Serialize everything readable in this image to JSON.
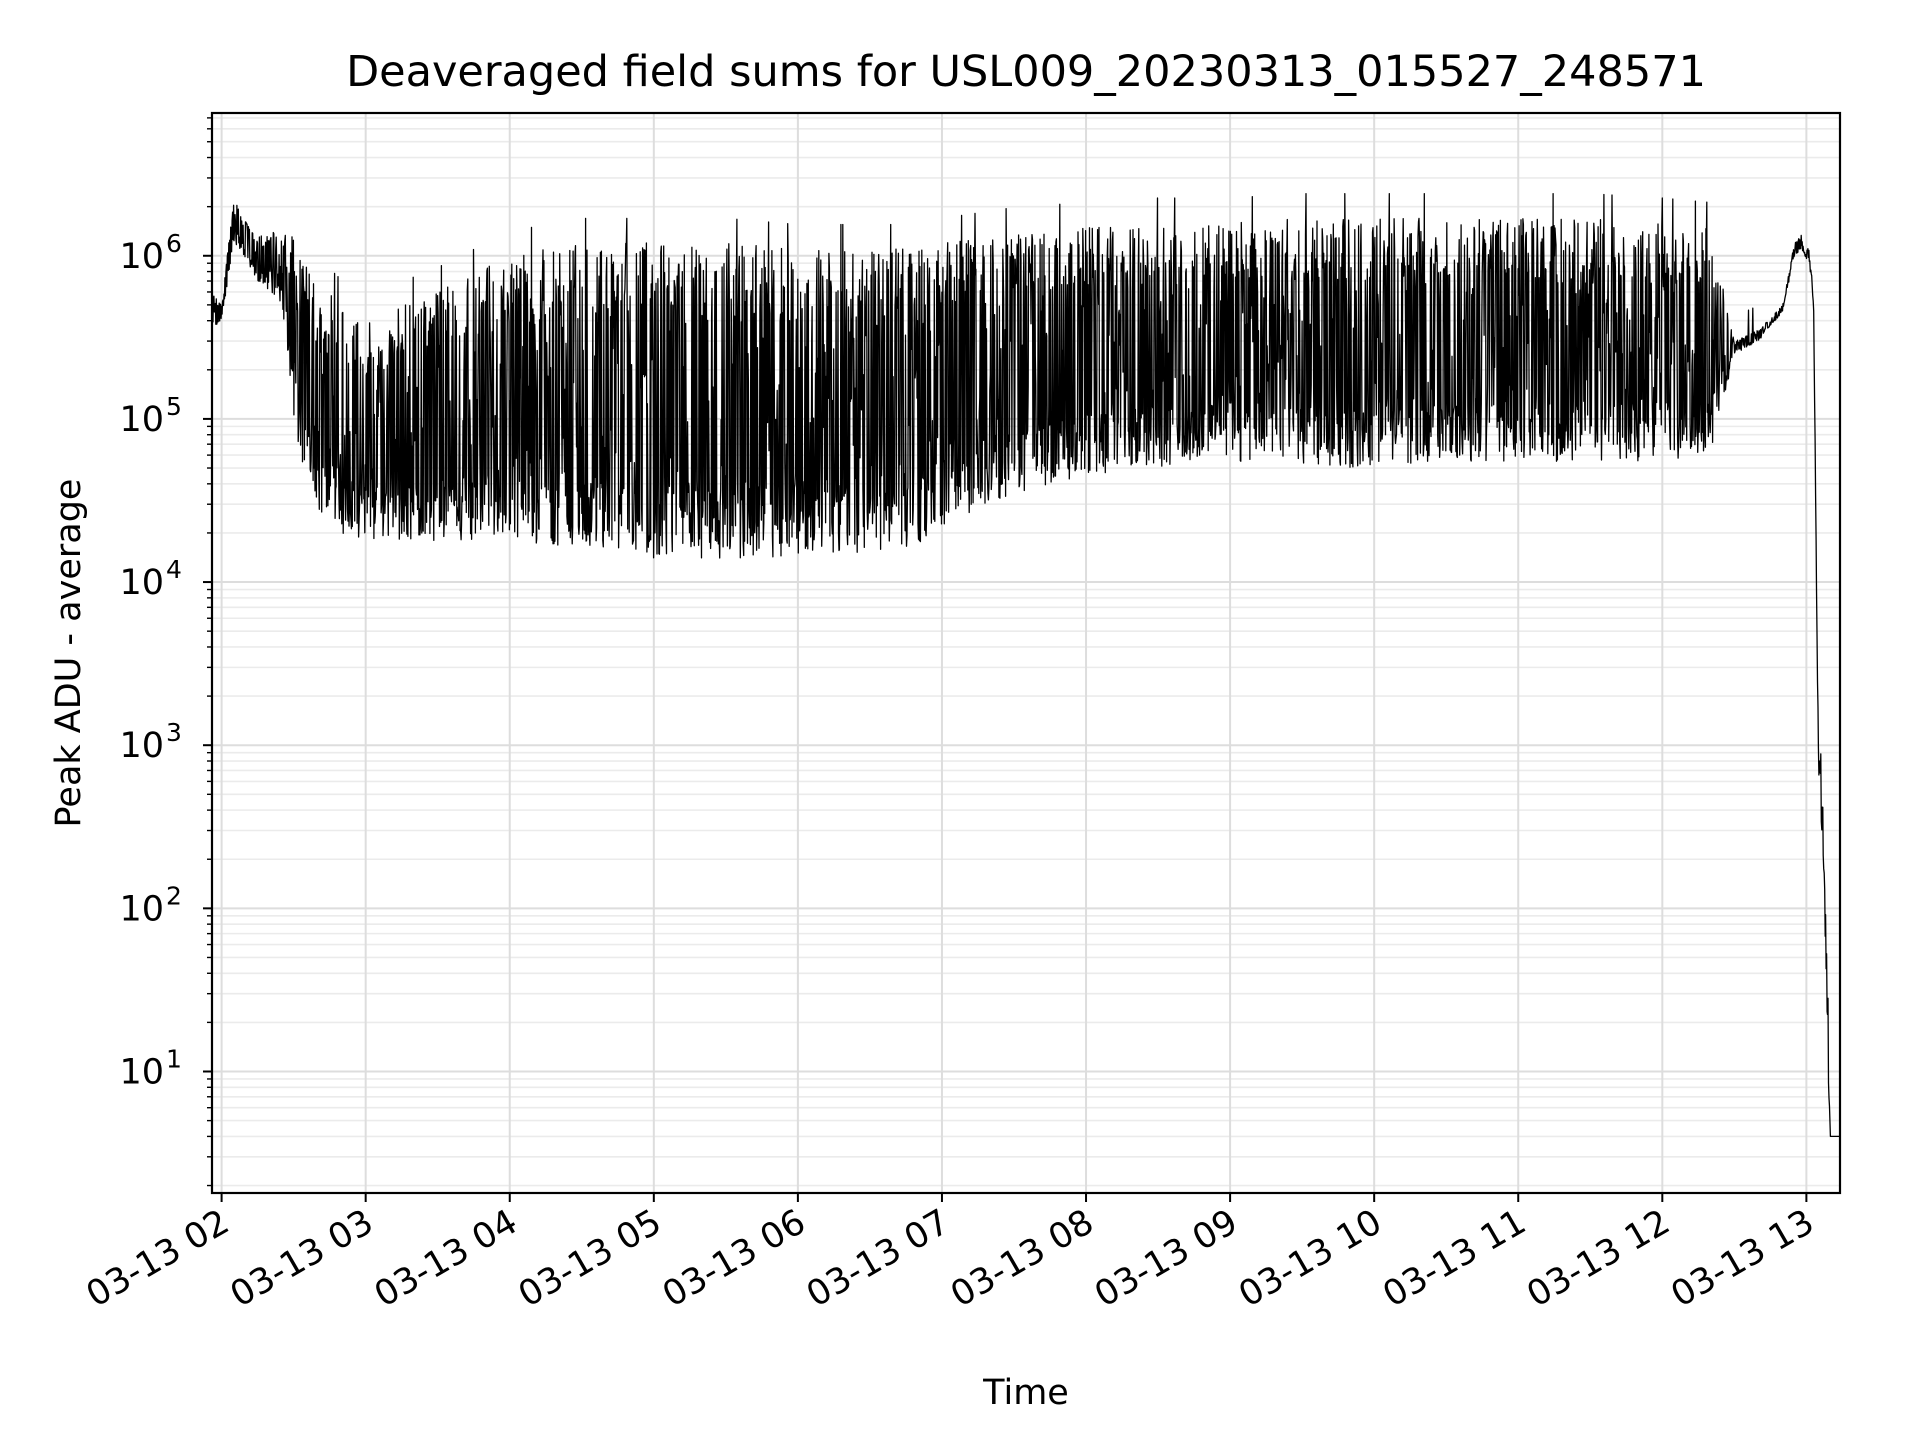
{
  "chart_data": {
    "type": "line",
    "title": "Deaveraged field sums for USL009_20230313_015527_248571",
    "xlabel": "Time",
    "ylabel": "Peak ADU - average",
    "x_axis_kind": "time",
    "x_unit": "hour",
    "xlim": [
      "2023-03-13 01:56",
      "2023-03-13 13:14"
    ],
    "ylim": [
      1.8,
      7500000
    ],
    "yscale": "log",
    "grid": true,
    "legend": "none",
    "x_ticks": [
      {
        "label": "03-13 02",
        "value": "2023-03-13 02:00"
      },
      {
        "label": "03-13 03",
        "value": "2023-03-13 03:00"
      },
      {
        "label": "03-13 04",
        "value": "2023-03-13 04:00"
      },
      {
        "label": "03-13 05",
        "value": "2023-03-13 05:00"
      },
      {
        "label": "03-13 06",
        "value": "2023-03-13 06:00"
      },
      {
        "label": "03-13 07",
        "value": "2023-03-13 07:00"
      },
      {
        "label": "03-13 08",
        "value": "2023-03-13 08:00"
      },
      {
        "label": "03-13 09",
        "value": "2023-03-13 09:00"
      },
      {
        "label": "03-13 10",
        "value": "2023-03-13 10:00"
      },
      {
        "label": "03-13 11",
        "value": "2023-03-13 11:00"
      },
      {
        "label": "03-13 12",
        "value": "2023-03-13 12:00"
      },
      {
        "label": "03-13 13",
        "value": "2023-03-13 13:00"
      }
    ],
    "y_ticks": [
      {
        "base": "10",
        "exp": "1",
        "value": 10
      },
      {
        "base": "10",
        "exp": "2",
        "value": 100
      },
      {
        "base": "10",
        "exp": "3",
        "value": 1000
      },
      {
        "base": "10",
        "exp": "4",
        "value": 10000
      },
      {
        "base": "10",
        "exp": "5",
        "value": 100000
      },
      {
        "base": "10",
        "exp": "6",
        "value": 1000000
      }
    ],
    "series": [
      {
        "color": "#000000",
        "envelope": {
          "description_of_fields": "x = time; upper/lower = approximate bounds of the rapidly oscillating signal",
          "x": [
            "2023-03-13 01:56",
            "2023-03-13 02:00",
            "2023-03-13 02:05",
            "2023-03-13 02:15",
            "2023-03-13 02:25",
            "2023-03-13 02:30",
            "2023-03-13 02:35",
            "2023-03-13 02:40",
            "2023-03-13 02:50",
            "2023-03-13 03:00",
            "2023-03-13 03:30",
            "2023-03-13 04:00",
            "2023-03-13 04:30",
            "2023-03-13 05:00",
            "2023-03-13 05:30",
            "2023-03-13 06:00",
            "2023-03-13 06:30",
            "2023-03-13 06:50",
            "2023-03-13 07:00",
            "2023-03-13 07:30",
            "2023-03-13 08:00",
            "2023-03-13 08:30",
            "2023-03-13 09:00",
            "2023-03-13 09:30",
            "2023-03-13 10:00",
            "2023-03-13 10:30",
            "2023-03-13 11:00",
            "2023-03-13 11:30",
            "2023-03-13 12:00",
            "2023-03-13 12:20",
            "2023-03-13 12:30",
            "2023-03-13 12:40",
            "2023-03-13 12:50",
            "2023-03-13 12:55",
            "2023-03-13 12:58",
            "2023-03-13 13:01",
            "2023-03-13 13:03",
            "2023-03-13 13:05",
            "2023-03-13 13:07",
            "2023-03-13 13:08",
            "2023-03-13 13:09",
            "2023-03-13 13:10",
            "2023-03-13 13:14"
          ],
          "upper": [
            600000,
            500000,
            2200000,
            1300000,
            1500000,
            1400000,
            900000,
            700000,
            500000,
            400000,
            600000,
            1000000,
            1200000,
            1200000,
            1200000,
            1100000,
            1100000,
            1100000,
            1200000,
            1400000,
            1500000,
            1600000,
            1600000,
            1700000,
            1700000,
            1700000,
            1700000,
            1700000,
            1600000,
            1500000,
            300000,
            350000,
            500000,
            1200000,
            1400000,
            1100000,
            600000,
            1000,
            400,
            100,
            30,
            4,
            4
          ],
          "lower": [
            350000,
            400000,
            1200000,
            700000,
            500000,
            100000,
            40000,
            25000,
            20000,
            18000,
            18000,
            18000,
            16000,
            14000,
            14000,
            14000,
            15000,
            17000,
            22000,
            35000,
            45000,
            50000,
            55000,
            50000,
            50000,
            55000,
            55000,
            55000,
            55000,
            60000,
            250000,
            300000,
            450000,
            1000000,
            1100000,
            900000,
            500000,
            700,
            200,
            50,
            10,
            4,
            4
          ]
        }
      }
    ]
  }
}
